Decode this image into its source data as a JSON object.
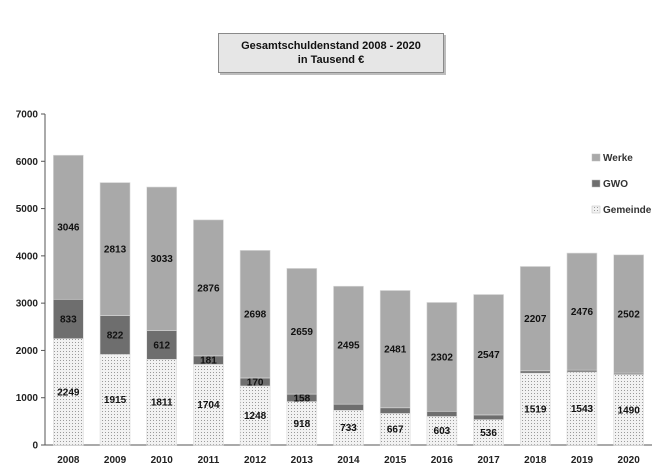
{
  "chart_data": {
    "type": "bar",
    "stacked": true,
    "title": "Gesamtschuldenstand 2008 - 2020",
    "subtitle": "in Tausend €",
    "categories": [
      "2008",
      "2009",
      "2010",
      "2011",
      "2012",
      "2013",
      "2014",
      "2015",
      "2016",
      "2017",
      "2018",
      "2019",
      "2020"
    ],
    "ylim": [
      0,
      7000
    ],
    "yticks": [
      0,
      1000,
      2000,
      3000,
      4000,
      5000,
      6000,
      7000
    ],
    "grid": false,
    "legend_position": "right",
    "series": [
      {
        "name": "Gemeinde",
        "color": "#e9e9e9",
        "values": [
          2249,
          1915,
          1811,
          1704,
          1248,
          918,
          733,
          667,
          603,
          536,
          1519,
          1543,
          1490
        ],
        "labels": [
          "2249",
          "1915",
          "1811",
          "1704",
          "1248",
          "918",
          "733",
          "667",
          "603",
          "536",
          "1519",
          "1543",
          "1490"
        ]
      },
      {
        "name": "GWO",
        "color": "#6e6e6e",
        "values": [
          833,
          822,
          612,
          181,
          170,
          158,
          130,
          120,
          110,
          100,
          50,
          40,
          30
        ],
        "labels": [
          "833",
          "822",
          "612",
          "181",
          "170",
          "158",
          "",
          "",
          "",
          "",
          "",
          "",
          ""
        ]
      },
      {
        "name": "Werke",
        "color": "#a9a9a9",
        "values": [
          3046,
          2813,
          3033,
          2876,
          2698,
          2659,
          2495,
          2481,
          2302,
          2547,
          2207,
          2476,
          2502
        ],
        "labels": [
          "3046",
          "2813",
          "3033",
          "2876",
          "2698",
          "2659",
          "2495",
          "2481",
          "2302",
          "2547",
          "2207",
          "2476",
          "2502"
        ]
      }
    ],
    "legend": [
      "Werke",
      "GWO",
      "Gemeinde"
    ]
  }
}
